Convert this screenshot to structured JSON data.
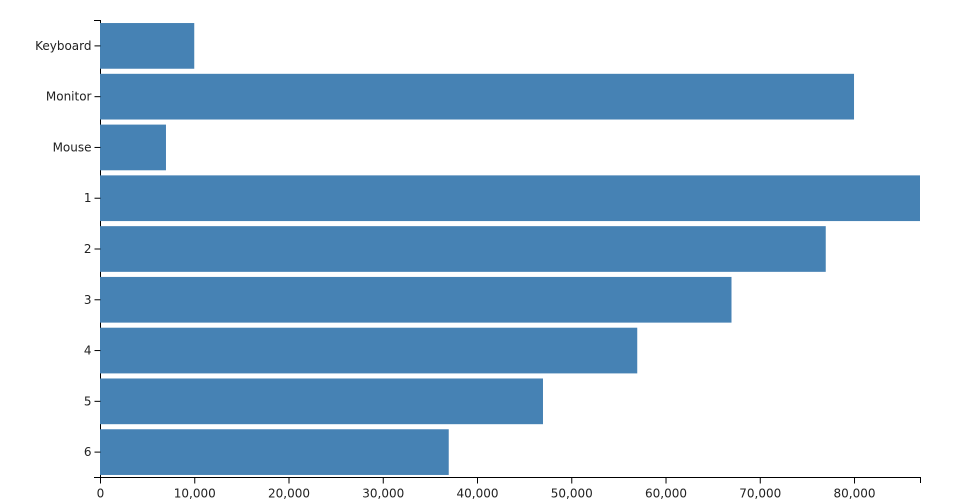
{
  "chart_data": {
    "type": "hbar",
    "categories": [
      "Keyboard",
      "Monitor",
      "Mouse",
      "1",
      "2",
      "3",
      "4",
      "5",
      "6"
    ],
    "values": [
      10000,
      80000,
      7000,
      87000,
      77000,
      67000,
      57000,
      47000,
      37000
    ],
    "color": "#4682b4",
    "xlim": [
      0,
      87000
    ],
    "xticks": [
      0,
      {
        "value": 10000,
        "label": "10,000"
      },
      {
        "value": 20000,
        "label": "20,000"
      },
      {
        "value": 30000,
        "label": "30,000"
      },
      {
        "value": 40000,
        "label": "40,000"
      },
      {
        "value": 50000,
        "label": "50,000"
      },
      {
        "value": 60000,
        "label": "60,000"
      },
      {
        "value": 70000,
        "label": "70,000"
      },
      {
        "value": 80000,
        "label": "80,000"
      }
    ]
  }
}
